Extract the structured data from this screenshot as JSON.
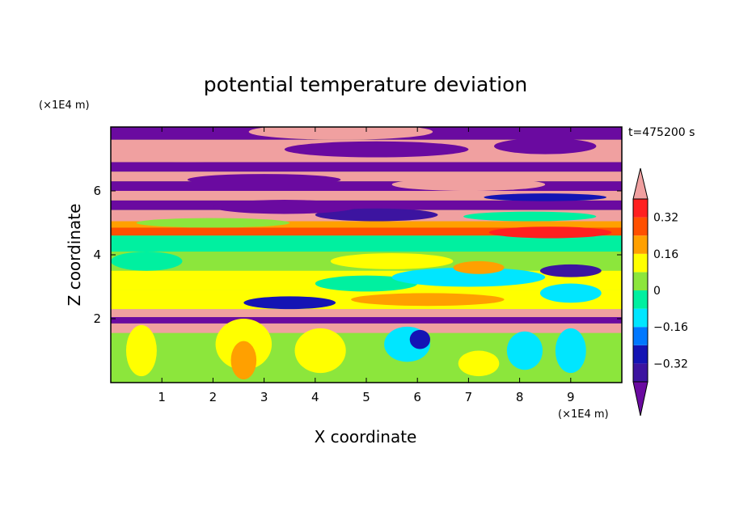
{
  "chart_data": {
    "type": "heatmap",
    "title": "potential temperature deviation",
    "xlabel": "X coordinate",
    "ylabel": "Z coordinate",
    "x_unit": "(×1E4 m)",
    "z_unit": "(×1E4 m)",
    "time_label": "t=475200 s",
    "xlim": [
      0,
      10
    ],
    "ylim": [
      0,
      8
    ],
    "x_ticks": [
      "1",
      "2",
      "3",
      "4",
      "5",
      "6",
      "7",
      "8",
      "9"
    ],
    "y_ticks": [
      "2",
      "4",
      "6"
    ],
    "colorbar": {
      "levels": [
        -0.4,
        -0.32,
        -0.24,
        -0.16,
        -0.08,
        0,
        0.08,
        0.16,
        0.24,
        0.32,
        0.4
      ],
      "tick_labels": [
        "0.32",
        "0.16",
        "0",
        "−0.16",
        "−0.32"
      ],
      "tick_values": [
        0.32,
        0.16,
        0,
        -0.16,
        -0.32
      ],
      "colors": [
        "#6a0aa0",
        "#3c14a0",
        "#1414b4",
        "#0078ff",
        "#00e6ff",
        "#00f0a0",
        "#8ce63c",
        "#ffff00",
        "#ffa000",
        "#ff5000",
        "#ff2020",
        "#f0a0a0"
      ],
      "extend": "both"
    },
    "background_field": "#8ce63c",
    "bands": [
      {
        "z0": 7.6,
        "z1": 8.0,
        "value": -0.45
      },
      {
        "z0": 6.9,
        "z1": 7.6,
        "value": 0.45
      },
      {
        "z0": 6.6,
        "z1": 6.9,
        "value": -0.45
      },
      {
        "z0": 6.3,
        "z1": 6.6,
        "value": 0.45
      },
      {
        "z0": 6.0,
        "z1": 6.3,
        "value": -0.45
      },
      {
        "z0": 5.7,
        "z1": 6.0,
        "value": 0.45
      },
      {
        "z0": 5.4,
        "z1": 5.7,
        "value": -0.45
      },
      {
        "z0": 5.05,
        "z1": 5.4,
        "value": 0.45
      },
      {
        "z0": 4.85,
        "z1": 5.05,
        "value": 0.2
      },
      {
        "z0": 4.6,
        "z1": 4.85,
        "value": 0.3
      },
      {
        "z0": 4.1,
        "z1": 4.6,
        "value": -0.05
      },
      {
        "z0": 3.5,
        "z1": 4.1,
        "value": 0.04
      },
      {
        "z0": 2.9,
        "z1": 3.5,
        "value": 0.1
      },
      {
        "z0": 2.3,
        "z1": 2.9,
        "value": 0.12
      },
      {
        "z0": 2.05,
        "z1": 2.3,
        "value": 0.45
      },
      {
        "z0": 1.85,
        "z1": 2.05,
        "value": -0.4
      },
      {
        "z0": 1.55,
        "z1": 1.85,
        "value": 0.45
      },
      {
        "z0": 0.0,
        "z1": 1.55,
        "value": 0.04
      }
    ],
    "blobs": [
      {
        "x": 2.6,
        "z": 1.2,
        "rx": 0.55,
        "rz": 0.8,
        "value": 0.14
      },
      {
        "x": 2.6,
        "z": 0.7,
        "rx": 0.25,
        "rz": 0.6,
        "value": 0.22
      },
      {
        "x": 0.6,
        "z": 1.0,
        "rx": 0.3,
        "rz": 0.8,
        "value": 0.12
      },
      {
        "x": 4.1,
        "z": 1.0,
        "rx": 0.5,
        "rz": 0.7,
        "value": 0.15
      },
      {
        "x": 5.8,
        "z": 1.2,
        "rx": 0.45,
        "rz": 0.55,
        "value": -0.12
      },
      {
        "x": 6.05,
        "z": 1.35,
        "rx": 0.2,
        "rz": 0.3,
        "value": -0.3
      },
      {
        "x": 8.1,
        "z": 1.0,
        "rx": 0.35,
        "rz": 0.6,
        "value": -0.1
      },
      {
        "x": 9.0,
        "z": 1.0,
        "rx": 0.3,
        "rz": 0.7,
        "value": -0.12
      },
      {
        "x": 7.2,
        "z": 0.6,
        "rx": 0.4,
        "rz": 0.4,
        "value": 0.15
      },
      {
        "x": 3.5,
        "z": 2.5,
        "rx": 0.9,
        "rz": 0.2,
        "value": -0.3
      },
      {
        "x": 6.2,
        "z": 2.6,
        "rx": 1.5,
        "rz": 0.2,
        "value": 0.22
      },
      {
        "x": 5.0,
        "z": 3.1,
        "rx": 1.0,
        "rz": 0.25,
        "value": -0.05
      },
      {
        "x": 7.0,
        "z": 3.3,
        "rx": 1.5,
        "rz": 0.3,
        "value": -0.08
      },
      {
        "x": 9.0,
        "z": 2.8,
        "rx": 0.6,
        "rz": 0.3,
        "value": -0.1
      },
      {
        "x": 0.7,
        "z": 3.8,
        "rx": 0.7,
        "rz": 0.3,
        "value": -0.05
      },
      {
        "x": 5.5,
        "z": 3.8,
        "rx": 1.2,
        "rz": 0.25,
        "value": 0.1
      },
      {
        "x": 9.0,
        "z": 3.5,
        "rx": 0.6,
        "rz": 0.2,
        "value": -0.35
      },
      {
        "x": 7.2,
        "z": 3.6,
        "rx": 0.5,
        "rz": 0.2,
        "value": 0.2
      },
      {
        "x": 8.6,
        "z": 4.7,
        "rx": 1.2,
        "rz": 0.18,
        "value": 0.35
      },
      {
        "x": 5.2,
        "z": 5.25,
        "rx": 1.2,
        "rz": 0.2,
        "value": -0.35
      },
      {
        "x": 3.4,
        "z": 5.5,
        "rx": 1.4,
        "rz": 0.22,
        "value": -0.4
      },
      {
        "x": 8.2,
        "z": 5.2,
        "rx": 1.3,
        "rz": 0.15,
        "value": 0.0
      },
      {
        "x": 2.0,
        "z": 5.0,
        "rx": 1.5,
        "rz": 0.15,
        "value": 0.06
      },
      {
        "x": 1.5,
        "z": 7.2,
        "rx": 1.2,
        "rz": 0.3,
        "value": 0.45
      },
      {
        "x": 5.2,
        "z": 7.3,
        "rx": 1.8,
        "rz": 0.25,
        "value": -0.45
      },
      {
        "x": 8.5,
        "z": 7.4,
        "rx": 1.0,
        "rz": 0.25,
        "value": -0.45
      },
      {
        "x": 4.5,
        "z": 7.85,
        "rx": 1.8,
        "rz": 0.25,
        "value": 0.45
      },
      {
        "x": 7.0,
        "z": 6.2,
        "rx": 1.5,
        "rz": 0.2,
        "value": 0.45
      },
      {
        "x": 3.0,
        "z": 6.35,
        "rx": 1.5,
        "rz": 0.18,
        "value": -0.45
      },
      {
        "x": 8.5,
        "z": 5.8,
        "rx": 1.2,
        "rz": 0.12,
        "value": -0.25
      }
    ]
  }
}
